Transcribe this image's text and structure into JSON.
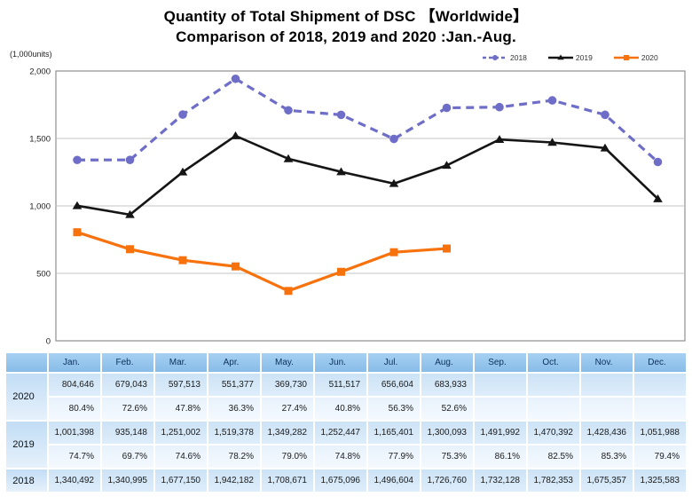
{
  "page": {
    "title_line1": "Quantity of Total Shipment of DSC 【Worldwide】",
    "title_line2": "Comparison of 2018, 2019 and 2020 :Jan.-Aug."
  },
  "chart_data": {
    "type": "line",
    "title": "Quantity of Total Shipment of DSC 【Worldwide】 Comparison of 2018, 2019 and 2020 :Jan.-Aug.",
    "unit_label": "(1,000units)",
    "x": [
      "Jan.",
      "Feb.",
      "Mar.",
      "Apr.",
      "May.",
      "Jun.",
      "Jul.",
      "Aug.",
      "Sep.",
      "Oct.",
      "Nov.",
      "Dec."
    ],
    "ylim": [
      0,
      2000
    ],
    "yticks": [
      {
        "value": 0,
        "label": "0"
      },
      {
        "value": 500,
        "label": "500"
      },
      {
        "value": 1000,
        "label": "1,000"
      },
      {
        "value": 1500,
        "label": "1,500"
      },
      {
        "value": 2000,
        "label": "2,000"
      }
    ],
    "grid": true,
    "legend_position": "top-right",
    "series": [
      {
        "name": "2018",
        "color": "#6e6ec8",
        "line_style": "dashed",
        "marker": "circle",
        "values": [
          1340.492,
          1340.995,
          1677.15,
          1942.182,
          1708.671,
          1675.096,
          1496.604,
          1726.76,
          1732.128,
          1782.353,
          1675.357,
          1325.583
        ]
      },
      {
        "name": "2019",
        "color": "#151515",
        "line_style": "solid",
        "marker": "triangle",
        "values": [
          1001.398,
          935.148,
          1251.002,
          1519.378,
          1349.282,
          1252.447,
          1165.401,
          1300.093,
          1491.992,
          1470.392,
          1428.436,
          1051.988
        ]
      },
      {
        "name": "2020",
        "color": "#f7710d",
        "line_style": "solid",
        "marker": "square",
        "values": [
          804.646,
          679.043,
          597.513,
          551.377,
          369.73,
          511.517,
          656.604,
          683.933,
          null,
          null,
          null,
          null
        ]
      }
    ]
  },
  "table": {
    "corner_label": "",
    "months": [
      "Jan.",
      "Feb.",
      "Mar.",
      "Apr.",
      "May.",
      "Jun.",
      "Jul.",
      "Aug.",
      "Sep.",
      "Oct.",
      "Nov.",
      "Dec."
    ],
    "rows": [
      {
        "year": "2020",
        "values": [
          "804,646",
          "679,043",
          "597,513",
          "551,377",
          "369,730",
          "511,517",
          "656,604",
          "683,933",
          "",
          "",
          "",
          ""
        ],
        "percents": [
          "80.4%",
          "72.6%",
          "47.8%",
          "36.3%",
          "27.4%",
          "40.8%",
          "56.3%",
          "52.6%",
          "",
          "",
          "",
          ""
        ]
      },
      {
        "year": "2019",
        "values": [
          "1,001,398",
          "935,148",
          "1,251,002",
          "1,519,378",
          "1,349,282",
          "1,252,447",
          "1,165,401",
          "1,300,093",
          "1,491,992",
          "1,470,392",
          "1,428,436",
          "1,051,988"
        ],
        "percents": [
          "74.7%",
          "69.7%",
          "74.6%",
          "78.2%",
          "79.0%",
          "74.8%",
          "77.9%",
          "75.3%",
          "86.1%",
          "82.5%",
          "85.3%",
          "79.4%"
        ]
      },
      {
        "year": "2018",
        "values": [
          "1,340,492",
          "1,340,995",
          "1,677,150",
          "1,942,182",
          "1,708,671",
          "1,675,096",
          "1,496,604",
          "1,726,760",
          "1,732,128",
          "1,782,353",
          "1,675,357",
          "1,325,583"
        ]
      }
    ]
  },
  "colors": {
    "header_bg": "#8abde9",
    "value_row_bg": "#d5e7f7",
    "percent_row_bg": "#edf5fc",
    "grid_line": "#c4c4c4",
    "plot_border": "#8f8f8f"
  }
}
